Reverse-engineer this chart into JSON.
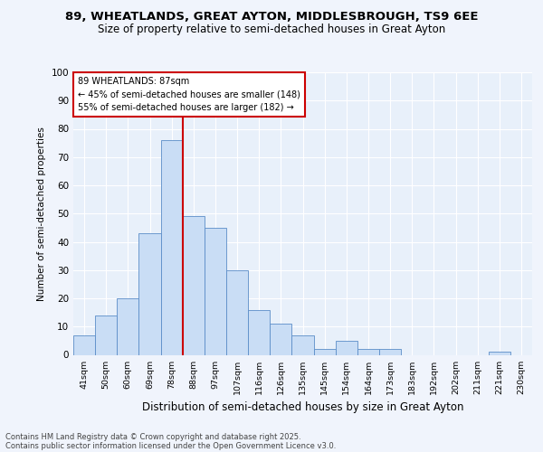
{
  "title_line1": "89, WHEATLANDS, GREAT AYTON, MIDDLESBROUGH, TS9 6EE",
  "title_line2": "Size of property relative to semi-detached houses in Great Ayton",
  "xlabel": "Distribution of semi-detached houses by size in Great Ayton",
  "ylabel": "Number of semi-detached properties",
  "categories": [
    "41sqm",
    "50sqm",
    "60sqm",
    "69sqm",
    "78sqm",
    "88sqm",
    "97sqm",
    "107sqm",
    "116sqm",
    "126sqm",
    "135sqm",
    "145sqm",
    "154sqm",
    "164sqm",
    "173sqm",
    "183sqm",
    "192sqm",
    "202sqm",
    "211sqm",
    "221sqm",
    "230sqm"
  ],
  "values": [
    7,
    14,
    20,
    43,
    76,
    49,
    45,
    30,
    16,
    11,
    7,
    2,
    5,
    2,
    2,
    0,
    0,
    0,
    0,
    1,
    0
  ],
  "bar_color": "#c9ddf5",
  "bar_edge_color": "#5b8dc8",
  "background_color": "#e8f0fa",
  "grid_color": "#ffffff",
  "vline_color": "#cc0000",
  "annotation_title": "89 WHEATLANDS: 87sqm",
  "annotation_line1": "← 45% of semi-detached houses are smaller (148)",
  "annotation_line2": "55% of semi-detached houses are larger (182) →",
  "annotation_box_color": "#ffffff",
  "annotation_box_edge": "#cc0000",
  "footer_line1": "Contains HM Land Registry data © Crown copyright and database right 2025.",
  "footer_line2": "Contains public sector information licensed under the Open Government Licence v3.0.",
  "ylim": [
    0,
    100
  ],
  "yticks": [
    0,
    10,
    20,
    30,
    40,
    50,
    60,
    70,
    80,
    90,
    100
  ],
  "fig_bg": "#f0f4fc"
}
